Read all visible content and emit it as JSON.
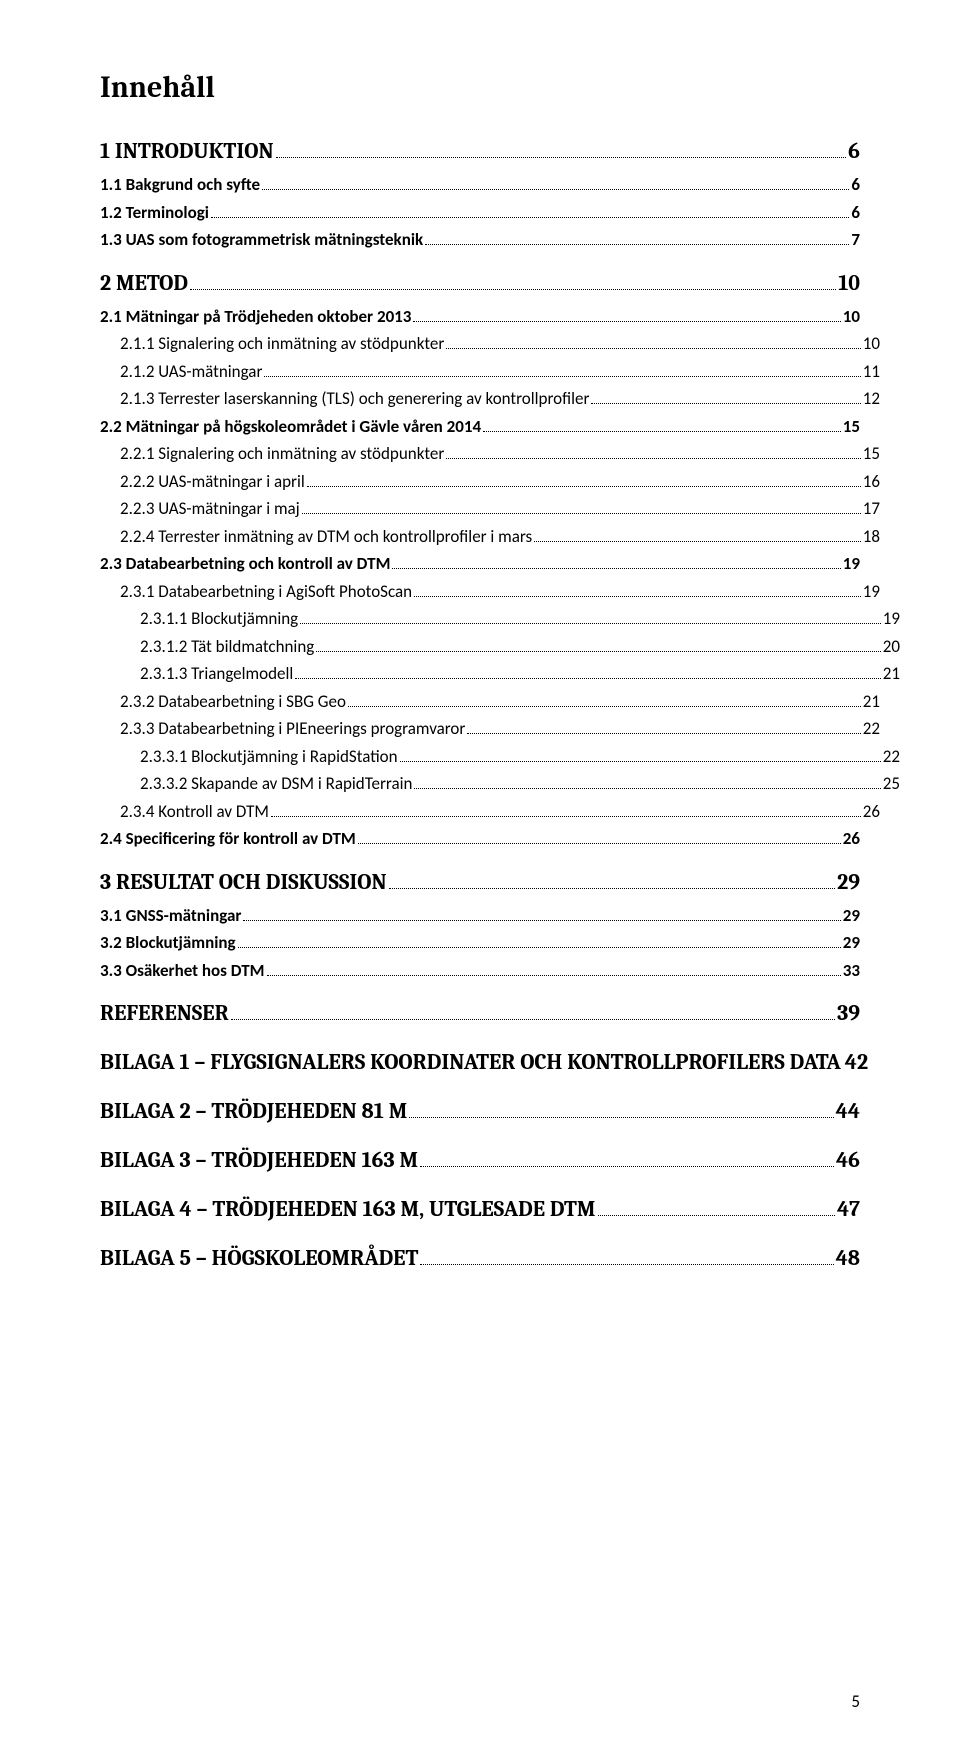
{
  "title": "Innehåll",
  "page_number": "5",
  "toc": [
    {
      "level": 1,
      "label": "1 INTRODUKTION",
      "page": "6"
    },
    {
      "level": 2,
      "label": "1.1 Bakgrund och syfte",
      "page": "6"
    },
    {
      "level": 2,
      "label": "1.2 Terminologi",
      "page": "6"
    },
    {
      "level": 2,
      "label": "1.3 UAS som fotogrammetrisk mätningsteknik",
      "page": "7"
    },
    {
      "level": 1,
      "label": "2 METOD",
      "page": "10"
    },
    {
      "level": 2,
      "label": "2.1 Mätningar på Trödjeheden oktober 2013",
      "page": "10"
    },
    {
      "level": 3,
      "label": "2.1.1 Signalering och inmätning av stödpunkter",
      "page": "10"
    },
    {
      "level": 3,
      "label": "2.1.2 UAS-mätningar",
      "page": "11"
    },
    {
      "level": 3,
      "label": "2.1.3 Terrester laserskanning (TLS) och generering av kontrollprofiler",
      "page": "12"
    },
    {
      "level": 2,
      "label": "2.2 Mätningar på högskoleområdet i Gävle våren 2014",
      "page": "15"
    },
    {
      "level": 3,
      "label": "2.2.1 Signalering och inmätning av stödpunkter",
      "page": "15"
    },
    {
      "level": 3,
      "label": "2.2.2 UAS-mätningar i april",
      "page": "16"
    },
    {
      "level": 3,
      "label": "2.2.3 UAS-mätningar i maj",
      "page": "17"
    },
    {
      "level": 3,
      "label": "2.2.4 Terrester inmätning av DTM och kontrollprofiler i mars",
      "page": "18"
    },
    {
      "level": 2,
      "label": "2.3 Databearbetning och kontroll av DTM",
      "page": "19"
    },
    {
      "level": 3,
      "label": "2.3.1 Databearbetning i AgiSoft PhotoScan",
      "page": "19"
    },
    {
      "level": 4,
      "label": "2.3.1.1 Blockutjämning",
      "page": "19"
    },
    {
      "level": 4,
      "label": "2.3.1.2 Tät bildmatchning",
      "page": "20"
    },
    {
      "level": 4,
      "label": "2.3.1.3 Triangelmodell",
      "page": "21"
    },
    {
      "level": 3,
      "label": "2.3.2 Databearbetning i SBG Geo",
      "page": "21"
    },
    {
      "level": 3,
      "label": "2.3.3 Databearbetning i PIEneerings programvaror",
      "page": "22"
    },
    {
      "level": 4,
      "label": "2.3.3.1 Blockutjämning i RapidStation",
      "page": "22"
    },
    {
      "level": 4,
      "label": "2.3.3.2 Skapande av DSM i RapidTerrain",
      "page": "25"
    },
    {
      "level": 3,
      "label": "2.3.4 Kontroll av DTM",
      "page": "26"
    },
    {
      "level": 2,
      "label": "2.4 Specificering för kontroll av DTM",
      "page": "26"
    },
    {
      "level": 1,
      "label": "3 RESULTAT OCH DISKUSSION",
      "page": "29"
    },
    {
      "level": 2,
      "label": "3.1 GNSS-mätningar",
      "page": "29"
    },
    {
      "level": 2,
      "label": "3.2 Blockutjämning",
      "page": "29"
    },
    {
      "level": 2,
      "label": "3.3 Osäkerhet hos DTM",
      "page": "33"
    },
    {
      "level": 1,
      "label": "REFERENSER",
      "page": "39"
    },
    {
      "level": 1,
      "label": "BILAGA 1 – FLYGSIGNALERS KOORDINATER OCH KONTROLLPROFILERS DATA",
      "page": "42"
    },
    {
      "level": 1,
      "label": "BILAGA 2 – TRÖDJEHEDEN 81 M",
      "page": "44"
    },
    {
      "level": 1,
      "label": "BILAGA 3 – TRÖDJEHEDEN 163 M",
      "page": "46"
    },
    {
      "level": 1,
      "label": "BILAGA 4 – TRÖDJEHEDEN 163 M, UTGLESADE DTM",
      "page": "47"
    },
    {
      "level": 1,
      "label": "BILAGA 5 – HÖGSKOLEOMRÅDET",
      "page": "48"
    }
  ]
}
